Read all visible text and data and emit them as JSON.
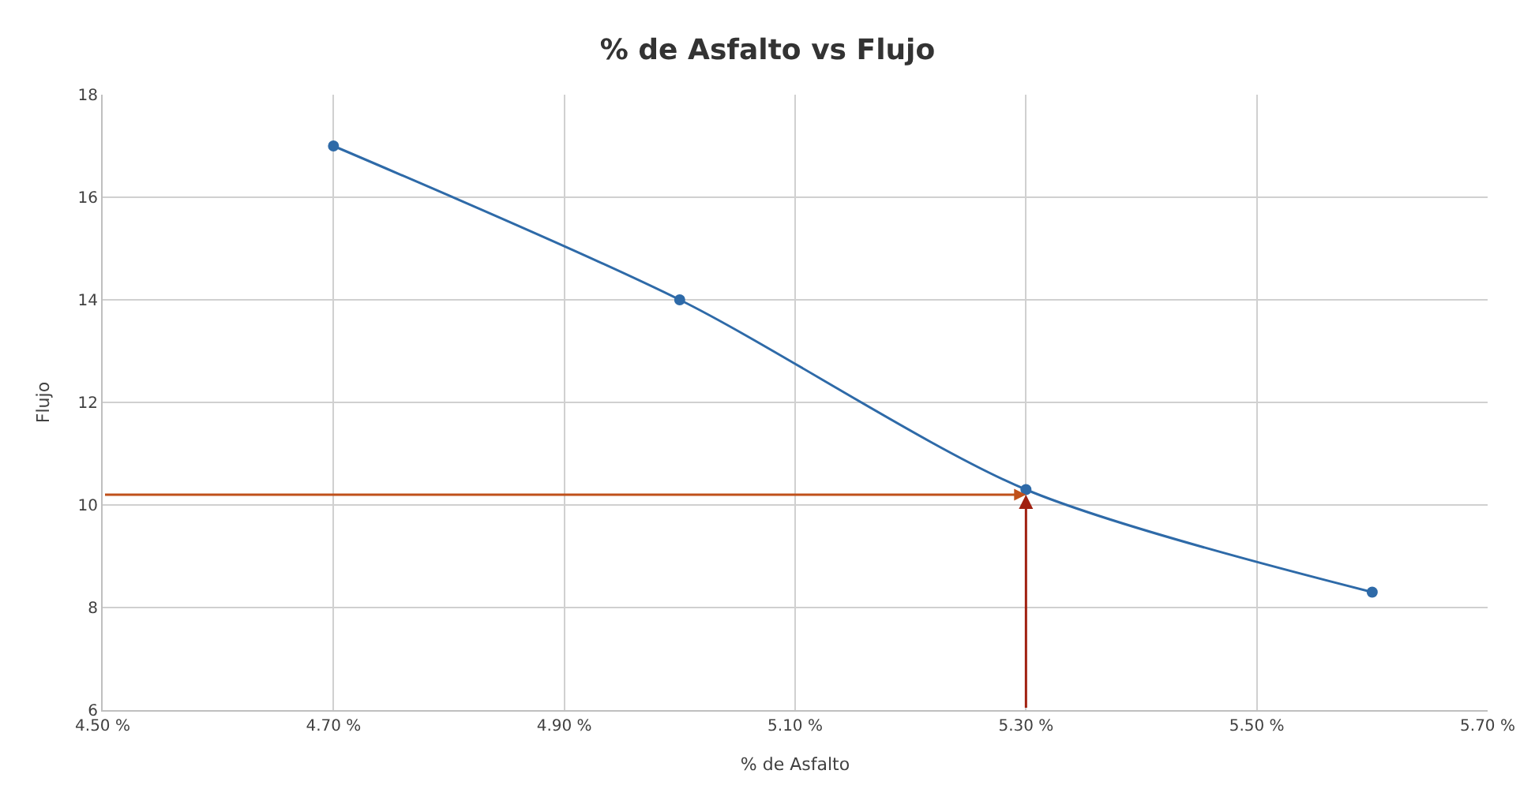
{
  "chart_data": {
    "type": "line",
    "title": "% de Asfalto vs Flujo",
    "xlabel": "% de Asfalto",
    "ylabel": "Flujo",
    "x": [
      4.7,
      5.0,
      5.3,
      5.6
    ],
    "series": [
      {
        "color": "#2e6aa8",
        "values": [
          17.0,
          14.0,
          10.3,
          8.3
        ]
      }
    ],
    "xlim": [
      4.5,
      5.7
    ],
    "ylim": [
      6,
      18
    ],
    "xticks": [
      {
        "value": 4.5,
        "label": "4.50 %"
      },
      {
        "value": 4.7,
        "label": "4.70 %"
      },
      {
        "value": 4.9,
        "label": "4.90 %"
      },
      {
        "value": 5.1,
        "label": "5.10 %"
      },
      {
        "value": 5.3,
        "label": "5.30 %"
      },
      {
        "value": 5.5,
        "label": "5.50 %"
      },
      {
        "value": 5.7,
        "label": "5.70 %"
      }
    ],
    "yticks": [
      6,
      8,
      10,
      12,
      14,
      16,
      18
    ],
    "ref_lines": [
      {
        "axis": "y",
        "value": 10.2,
        "color": "#c0501a"
      },
      {
        "axis": "x",
        "value": 5.3,
        "color": "#a02010"
      }
    ],
    "grid": true,
    "legend": false,
    "marker": "circle",
    "line_style": "solid"
  }
}
